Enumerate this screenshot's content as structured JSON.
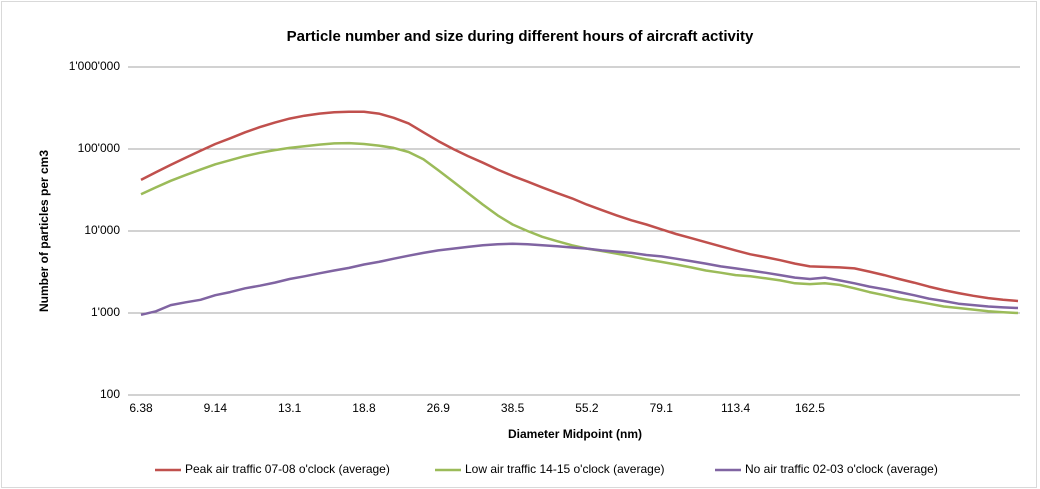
{
  "chart_data": {
    "type": "line",
    "title": "Particle number and size during different hours of aircraft activity",
    "x_label": "Diameter Midpoint (nm)",
    "y_label": "Number of particles per cm3",
    "categories": [
      "6.38",
      null,
      null,
      null,
      null,
      "9.14",
      null,
      null,
      null,
      null,
      "13.1",
      null,
      null,
      null,
      null,
      "18.8",
      null,
      null,
      null,
      null,
      "26.9",
      null,
      null,
      null,
      null,
      "38.5",
      null,
      null,
      null,
      null,
      "55.2",
      null,
      null,
      null,
      null,
      "79.1",
      null,
      null,
      null,
      null,
      "113.4",
      null,
      null,
      null,
      null,
      "162.5",
      null,
      null,
      null,
      null,
      null,
      null,
      null,
      null,
      null,
      null,
      null,
      null,
      null,
      null
    ],
    "log_y": true,
    "ylim": [
      100,
      1000000
    ],
    "yticks": [
      100,
      {
        "value": 1000,
        "label": "1'000"
      },
      {
        "value": 10000,
        "label": "10'000"
      },
      {
        "value": 100000,
        "label": "100'000"
      },
      {
        "value": 1000000,
        "label": "1'000'000"
      }
    ],
    "grid": true,
    "legend": "bottom",
    "series": [
      {
        "name": "Peak air traffic 07-08 o'clock (average)",
        "color": "#c0504d",
        "values": [
          42000,
          52000,
          64000,
          78000,
          95000,
          115000,
          135000,
          160000,
          185000,
          210000,
          235000,
          255000,
          270000,
          280000,
          285000,
          285000,
          270000,
          240000,
          205000,
          160000,
          125000,
          100000,
          82000,
          68000,
          56000,
          47000,
          40000,
          34000,
          29000,
          25000,
          21000,
          18000,
          15500,
          13500,
          12000,
          10500,
          9200,
          8200,
          7300,
          6500,
          5800,
          5200,
          4800,
          4400,
          4000,
          3700,
          3650,
          3600,
          3500,
          3200,
          2900,
          2600,
          2350,
          2100,
          1900,
          1750,
          1620,
          1520,
          1450,
          1400
        ]
      },
      {
        "name": "Low air traffic 14-15 o'clock (average)",
        "color": "#9bbb59",
        "values": [
          28000,
          34000,
          41000,
          48000,
          56000,
          65000,
          73000,
          82000,
          90000,
          97000,
          103000,
          108000,
          113000,
          117000,
          118000,
          115000,
          110000,
          103000,
          92000,
          75000,
          55000,
          40000,
          29000,
          21000,
          15500,
          12000,
          10000,
          8500,
          7500,
          6700,
          6100,
          5700,
          5300,
          4900,
          4500,
          4200,
          3900,
          3600,
          3300,
          3100,
          2900,
          2800,
          2650,
          2500,
          2300,
          2250,
          2300,
          2200,
          2000,
          1800,
          1650,
          1500,
          1400,
          1300,
          1200,
          1150,
          1100,
          1050,
          1020,
          1000
        ]
      },
      {
        "name": "No air traffic 02-03 o'clock (average)",
        "color": "#8064a2",
        "values": [
          950,
          1050,
          1250,
          1350,
          1450,
          1650,
          1800,
          2000,
          2150,
          2350,
          2600,
          2800,
          3050,
          3300,
          3550,
          3900,
          4200,
          4600,
          5000,
          5400,
          5800,
          6100,
          6400,
          6700,
          6900,
          7000,
          6900,
          6700,
          6500,
          6300,
          6100,
          5800,
          5600,
          5400,
          5100,
          4900,
          4600,
          4300,
          4000,
          3700,
          3500,
          3300,
          3100,
          2900,
          2700,
          2600,
          2700,
          2500,
          2300,
          2100,
          1950,
          1800,
          1650,
          1500,
          1400,
          1300,
          1250,
          1200,
          1170,
          1150
        ]
      }
    ]
  }
}
